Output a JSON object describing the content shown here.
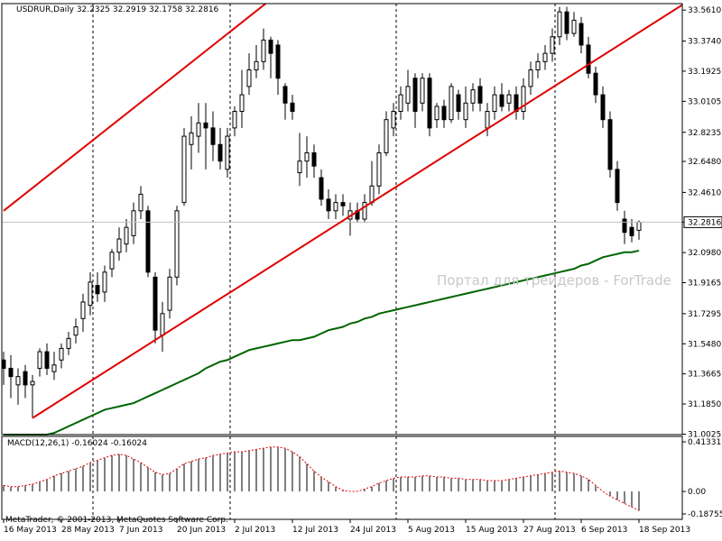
{
  "header": {
    "symbol_line": "USDRUR,Daily  32.2325 32.2919 32.1758 32.2816",
    "macd_line": "MACD(12,26,1) -0.16024 -0.16024",
    "copyright": "MetaTrader, © 2001-2013, MetaQuotes Software Corp.",
    "watermark": "Портал для трейдеров - ForTrade"
  },
  "colors": {
    "background": "#ffffff",
    "axis": "#000000",
    "candle": "#000000",
    "channel": "#e00000",
    "moving_average": "#006400",
    "macd_hist": "#000000",
    "macd_signal": "#e00000",
    "current_price_line": "#c0c0c0",
    "separators": "#000000"
  },
  "chart_data": [
    {
      "type": "candlestick",
      "title": "USDRUR,Daily",
      "ohlc_header": {
        "open": 32.2325,
        "high": 32.2919,
        "low": 32.1758,
        "close": 32.2816
      },
      "current_price": 32.2816,
      "current_price_label": "32.2816",
      "ylim": [
        31.0,
        33.6
      ],
      "y_tick_labels": [
        "33.5610",
        "33.3740",
        "33.1925",
        "33.0105",
        "32.8235",
        "32.6480",
        "32.4610",
        "32.2816",
        "32.0980",
        "31.9165",
        "31.7295",
        "31.5480",
        "31.3665",
        "31.1850",
        "31.0025"
      ],
      "y_tick_values": [
        33.561,
        33.374,
        33.1925,
        33.0105,
        32.8235,
        32.648,
        32.461,
        32.2816,
        32.098,
        31.9165,
        31.7295,
        31.548,
        31.3665,
        31.185,
        31.0025
      ],
      "x_tick_labels": [
        "16 May 2013",
        "28 May 2013",
        "7 Jun 2013",
        "20 Jun 2013",
        "2 Jul 2013",
        "12 Jul 2013",
        "24 Jul 2013",
        "5 Aug 2013",
        "15 Aug 2013",
        "27 Aug 2013",
        "6 Sep 2013",
        "18 Sep 2013"
      ],
      "x_tick_bars": [
        0,
        8,
        16,
        24,
        32,
        40,
        48,
        56,
        64,
        72,
        80,
        88
      ],
      "month_separator_bars": [
        12,
        31,
        54,
        76
      ],
      "candles": [
        [
          31.45,
          31.4,
          31.5,
          31.3
        ],
        [
          31.4,
          31.35,
          31.48,
          31.22
        ],
        [
          31.3,
          31.35,
          31.4,
          31.18
        ],
        [
          31.38,
          31.3,
          31.42,
          31.22
        ],
        [
          31.3,
          31.32,
          31.36,
          31.1
        ],
        [
          31.4,
          31.5,
          31.52,
          31.35
        ],
        [
          31.5,
          31.4,
          31.55,
          31.36
        ],
        [
          31.38,
          31.42,
          31.5,
          31.33
        ],
        [
          31.45,
          31.52,
          31.55,
          31.4
        ],
        [
          31.52,
          31.58,
          31.62,
          31.48
        ],
        [
          31.6,
          31.65,
          31.7,
          31.55
        ],
        [
          31.7,
          31.8,
          31.85,
          31.62
        ],
        [
          31.78,
          31.92,
          31.98,
          31.72
        ],
        [
          31.9,
          31.85,
          31.98,
          31.8
        ],
        [
          31.86,
          31.98,
          32.02,
          31.8
        ],
        [
          32.0,
          32.1,
          32.12,
          31.95
        ],
        [
          32.1,
          32.18,
          32.25,
          32.05
        ],
        [
          32.15,
          32.25,
          32.3,
          32.1
        ],
        [
          32.2,
          32.35,
          32.4,
          32.15
        ],
        [
          32.35,
          32.45,
          32.5,
          32.3
        ],
        [
          32.35,
          31.98,
          32.38,
          31.95
        ],
        [
          31.95,
          31.63,
          31.98,
          31.55
        ],
        [
          31.6,
          31.73,
          31.8,
          31.5
        ],
        [
          31.75,
          31.95,
          32.0,
          31.7
        ],
        [
          31.95,
          32.35,
          32.38,
          31.9
        ],
        [
          32.4,
          32.8,
          32.85,
          32.38
        ],
        [
          32.75,
          32.82,
          32.92,
          32.6
        ],
        [
          32.8,
          32.88,
          33.0,
          32.7
        ],
        [
          32.88,
          32.85,
          33.0,
          32.6
        ],
        [
          32.85,
          32.75,
          32.95,
          32.65
        ],
        [
          32.75,
          32.65,
          32.85,
          32.6
        ],
        [
          32.6,
          32.8,
          32.85,
          32.55
        ],
        [
          32.85,
          32.95,
          32.98,
          32.8
        ],
        [
          32.95,
          33.05,
          33.2,
          32.85
        ],
        [
          33.1,
          33.2,
          33.3,
          33.05
        ],
        [
          33.2,
          33.25,
          33.35,
          33.15
        ],
        [
          33.25,
          33.38,
          33.45,
          33.2
        ],
        [
          33.38,
          33.3,
          33.4,
          33.15
        ],
        [
          33.35,
          33.15,
          33.38,
          33.05
        ],
        [
          33.1,
          33.0,
          33.12,
          32.9
        ],
        [
          33.0,
          32.95,
          33.05,
          32.9
        ],
        [
          32.58,
          32.65,
          32.82,
          32.5
        ],
        [
          32.65,
          32.7,
          32.8,
          32.55
        ],
        [
          32.7,
          32.62,
          32.75,
          32.55
        ],
        [
          32.55,
          32.42,
          32.6,
          32.38
        ],
        [
          32.42,
          32.35,
          32.48,
          32.3
        ],
        [
          32.35,
          32.4,
          32.45,
          32.3
        ],
        [
          32.4,
          32.38,
          32.45,
          32.32
        ],
        [
          32.3,
          32.35,
          32.4,
          32.2
        ],
        [
          32.35,
          32.3,
          32.4,
          32.28
        ],
        [
          32.3,
          32.4,
          32.45,
          32.28
        ],
        [
          32.4,
          32.5,
          32.65,
          32.38
        ],
        [
          32.5,
          32.7,
          32.75,
          32.45
        ],
        [
          32.7,
          32.9,
          32.95,
          32.68
        ],
        [
          32.85,
          32.95,
          33.0,
          32.8
        ],
        [
          32.95,
          33.05,
          33.1,
          32.9
        ],
        [
          33.0,
          33.1,
          33.2,
          32.95
        ],
        [
          33.15,
          32.95,
          33.18,
          32.85
        ],
        [
          33.0,
          33.15,
          33.18,
          32.95
        ],
        [
          33.15,
          32.85,
          33.18,
          32.8
        ],
        [
          32.9,
          32.98,
          33.0,
          32.85
        ],
        [
          32.98,
          32.9,
          33.02,
          32.85
        ],
        [
          32.9,
          33.1,
          33.12,
          32.88
        ],
        [
          33.05,
          32.95,
          33.08,
          32.9
        ],
        [
          32.9,
          33.0,
          33.1,
          32.85
        ],
        [
          33.0,
          33.08,
          33.12,
          32.95
        ],
        [
          33.1,
          33.0,
          33.15,
          32.95
        ],
        [
          32.85,
          32.95,
          33.0,
          32.8
        ],
        [
          32.95,
          33.05,
          33.1,
          32.9
        ],
        [
          33.05,
          32.98,
          33.12,
          32.95
        ],
        [
          33.0,
          33.05,
          33.08,
          32.95
        ],
        [
          33.05,
          32.95,
          33.1,
          32.9
        ],
        [
          32.95,
          33.1,
          33.15,
          32.9
        ],
        [
          33.1,
          33.2,
          33.25,
          33.05
        ],
        [
          33.2,
          33.25,
          33.3,
          33.15
        ],
        [
          33.25,
          33.3,
          33.35,
          33.2
        ],
        [
          33.3,
          33.4,
          33.45,
          33.25
        ],
        [
          33.4,
          33.55,
          33.58,
          33.35
        ],
        [
          33.55,
          33.42,
          33.58,
          33.38
        ],
        [
          33.42,
          33.5,
          33.55,
          33.4
        ],
        [
          33.48,
          33.35,
          33.52,
          33.3
        ],
        [
          33.35,
          33.18,
          33.4,
          33.15
        ],
        [
          33.18,
          33.05,
          33.22,
          33.0
        ],
        [
          33.05,
          32.9,
          33.1,
          32.85
        ],
        [
          32.9,
          32.6,
          32.95,
          32.55
        ],
        [
          32.6,
          32.4,
          32.65,
          32.35
        ],
        [
          32.3,
          32.22,
          32.35,
          32.15
        ],
        [
          32.25,
          32.2,
          32.3,
          32.16
        ],
        [
          32.2325,
          32.2816,
          32.2919,
          32.1758
        ]
      ],
      "moving_average": [
        31.0,
        31.0,
        31.0,
        31.0,
        31.0,
        31.0,
        31.0,
        31.01,
        31.03,
        31.05,
        31.07,
        31.09,
        31.11,
        31.13,
        31.15,
        31.16,
        31.17,
        31.18,
        31.19,
        31.21,
        31.23,
        31.25,
        31.27,
        31.29,
        31.31,
        31.33,
        31.35,
        31.37,
        31.4,
        31.42,
        31.44,
        31.45,
        31.47,
        31.49,
        31.51,
        31.52,
        31.53,
        31.54,
        31.55,
        31.56,
        31.57,
        31.57,
        31.58,
        31.59,
        31.61,
        31.63,
        31.64,
        31.65,
        31.67,
        31.68,
        31.7,
        31.71,
        31.73,
        31.74,
        31.75,
        31.76,
        31.77,
        31.78,
        31.79,
        31.8,
        31.81,
        31.82,
        31.83,
        31.84,
        31.85,
        31.86,
        31.87,
        31.88,
        31.89,
        31.9,
        31.91,
        31.92,
        31.93,
        31.94,
        31.95,
        31.96,
        31.97,
        31.98,
        31.99,
        32.0,
        32.02,
        32.03,
        32.05,
        32.07,
        32.08,
        32.09,
        32.1,
        32.1,
        32.11
      ],
      "channel_lines": [
        {
          "from": [
            0,
            32.35
          ],
          "to": [
            90,
            35.45
          ]
        },
        {
          "from": [
            4,
            31.1
          ],
          "to": [
            95,
            33.62
          ]
        }
      ]
    },
    {
      "type": "bar",
      "title": "MACD(12,26,1)",
      "values_header": [
        -0.16024,
        -0.16024
      ],
      "ylim": [
        -0.1875,
        0.4133
      ],
      "y_tick_labels": [
        "0.41331",
        "0.00",
        "-0.18755"
      ],
      "y_tick_values": [
        0.41331,
        0.0,
        -0.18755
      ],
      "histogram": [
        0.05,
        0.04,
        0.04,
        0.05,
        0.06,
        0.08,
        0.1,
        0.13,
        0.15,
        0.17,
        0.19,
        0.21,
        0.24,
        0.26,
        0.28,
        0.3,
        0.31,
        0.3,
        0.27,
        0.24,
        0.2,
        0.16,
        0.14,
        0.15,
        0.19,
        0.23,
        0.25,
        0.27,
        0.28,
        0.3,
        0.31,
        0.32,
        0.33,
        0.33,
        0.34,
        0.35,
        0.36,
        0.37,
        0.37,
        0.36,
        0.33,
        0.29,
        0.23,
        0.17,
        0.12,
        0.08,
        0.04,
        0.01,
        0.0,
        0.0,
        0.02,
        0.04,
        0.07,
        0.09,
        0.11,
        0.12,
        0.12,
        0.12,
        0.13,
        0.13,
        0.12,
        0.12,
        0.11,
        0.11,
        0.1,
        0.1,
        0.1,
        0.09,
        0.09,
        0.09,
        0.1,
        0.11,
        0.12,
        0.13,
        0.14,
        0.15,
        0.16,
        0.17,
        0.16,
        0.15,
        0.13,
        0.1,
        0.05,
        0.0,
        -0.04,
        -0.07,
        -0.1,
        -0.13,
        -0.16
      ],
      "signal": [
        0.05,
        0.04,
        0.04,
        0.05,
        0.06,
        0.08,
        0.1,
        0.13,
        0.15,
        0.17,
        0.19,
        0.21,
        0.24,
        0.26,
        0.28,
        0.3,
        0.31,
        0.3,
        0.27,
        0.24,
        0.2,
        0.16,
        0.14,
        0.15,
        0.19,
        0.23,
        0.25,
        0.27,
        0.28,
        0.3,
        0.31,
        0.32,
        0.33,
        0.33,
        0.34,
        0.35,
        0.36,
        0.37,
        0.37,
        0.36,
        0.33,
        0.29,
        0.23,
        0.17,
        0.12,
        0.08,
        0.04,
        0.01,
        0.0,
        0.0,
        0.02,
        0.04,
        0.07,
        0.09,
        0.11,
        0.12,
        0.12,
        0.12,
        0.13,
        0.13,
        0.12,
        0.12,
        0.11,
        0.11,
        0.1,
        0.1,
        0.1,
        0.09,
        0.09,
        0.09,
        0.1,
        0.11,
        0.12,
        0.13,
        0.14,
        0.15,
        0.16,
        0.17,
        0.16,
        0.15,
        0.13,
        0.1,
        0.05,
        0.0,
        -0.04,
        -0.07,
        -0.1,
        -0.13,
        -0.16
      ]
    }
  ]
}
